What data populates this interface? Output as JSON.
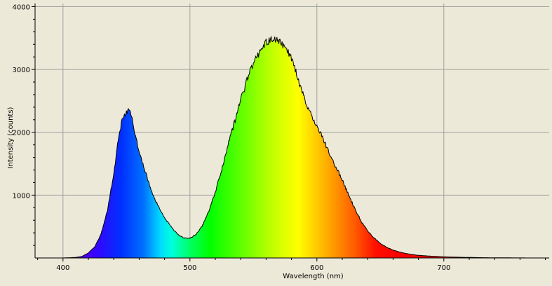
{
  "chart_data": {
    "type": "area",
    "xlabel": "Wavelength (nm)",
    "ylabel": "Intensity (counts)",
    "xlim": [
      378,
      783
    ],
    "ylim": [
      0,
      4050
    ],
    "grid": true,
    "x_ticks": [
      400,
      500,
      600,
      700
    ],
    "x_tick_labels": [
      "400",
      "500",
      "600",
      "700"
    ],
    "y_ticks": [
      1000,
      2000,
      3000,
      4000
    ],
    "y_tick_labels": [
      "1000",
      "2000",
      "3000",
      "4000"
    ],
    "fill": "visible-spectrum-gradient",
    "series": [
      {
        "x": [
          400,
          410,
          415,
          420,
          425,
          430,
          435,
          440,
          443,
          446,
          449,
          451,
          453,
          455,
          457,
          460,
          463,
          466,
          470,
          475,
          480,
          485,
          490,
          495,
          500,
          505,
          510,
          515,
          520,
          525,
          530,
          535,
          538,
          540,
          543,
          545,
          548,
          550,
          553,
          555,
          558,
          560,
          563,
          565,
          568,
          570,
          572,
          575,
          578,
          580,
          583,
          585,
          588,
          590,
          595,
          600,
          605,
          610,
          615,
          620,
          625,
          630,
          635,
          640,
          645,
          650,
          655,
          660,
          665,
          670,
          675,
          680,
          690,
          700,
          710,
          720,
          730,
          740,
          750,
          760,
          770,
          783
        ],
        "y": [
          0,
          8,
          25,
          80,
          180,
          380,
          760,
          1350,
          1800,
          2150,
          2300,
          2350,
          2320,
          2150,
          1950,
          1700,
          1500,
          1300,
          1050,
          820,
          640,
          500,
          380,
          320,
          310,
          380,
          520,
          750,
          1050,
          1400,
          1800,
          2150,
          2400,
          2550,
          2700,
          2850,
          3000,
          3100,
          3200,
          3300,
          3380,
          3430,
          3470,
          3480,
          3500,
          3460,
          3400,
          3350,
          3250,
          3150,
          3000,
          2850,
          2650,
          2550,
          2300,
          2100,
          1900,
          1650,
          1450,
          1250,
          1000,
          780,
          580,
          430,
          320,
          230,
          170,
          125,
          95,
          72,
          55,
          42,
          28,
          18,
          12,
          8,
          5,
          3,
          2,
          1,
          0,
          0
        ]
      }
    ]
  }
}
